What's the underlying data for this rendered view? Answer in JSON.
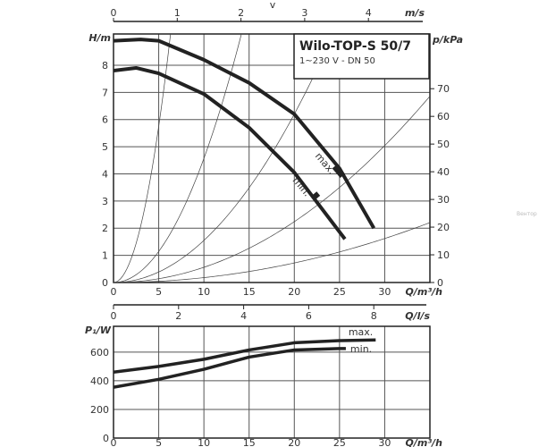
{
  "chart_data": [
    {
      "type": "line",
      "title": "Wilo-TOP-S 50/7",
      "subtitle": "1~230 V - DN 50",
      "xlabel": "Q/m³/h",
      "ylabel": "H/m",
      "y2label": "p/kPa",
      "top_axis_label": "v",
      "top_axis_unit": "m/s",
      "xlim": [
        0,
        35
      ],
      "ylim": [
        0,
        9.15
      ],
      "x_ticks": [
        0,
        5,
        10,
        15,
        20,
        25,
        30
      ],
      "y_ticks": [
        0,
        1,
        2,
        3,
        4,
        5,
        6,
        7,
        8
      ],
      "y2_ticks": [
        0,
        10,
        20,
        30,
        40,
        50,
        60,
        70
      ],
      "top_ticks": [
        0,
        1,
        2,
        3,
        4
      ],
      "series": [
        {
          "name": "max.",
          "x": [
            0,
            3,
            5,
            10,
            15,
            20,
            25,
            28.8
          ],
          "y": [
            8.9,
            8.95,
            8.9,
            8.2,
            7.35,
            6.2,
            4.2,
            2.0
          ]
        },
        {
          "name": "min.",
          "x": [
            0,
            2.5,
            5,
            10,
            15,
            20,
            25.6
          ],
          "y": [
            7.8,
            7.9,
            7.7,
            6.94,
            5.7,
            4.05,
            1.6
          ]
        }
      ],
      "markers": [
        {
          "name": "max.",
          "x": 24.9,
          "y": 4.1
        },
        {
          "name": "min.",
          "x": 22.4,
          "y": 3.2
        }
      ],
      "system_curves_k": [
        0.23,
        0.0457,
        0.0155,
        0.0056,
        0.0018
      ],
      "grid": true
    },
    {
      "type": "line",
      "xlabel": "Q/m³/h",
      "ylabel": "P₁/W",
      "mid_axis_label": "Q/l/s",
      "mid_ticks": [
        0,
        2,
        4,
        6,
        8
      ],
      "xlim": [
        0,
        35
      ],
      "ylim": [
        0,
        780
      ],
      "x_ticks": [
        0,
        5,
        10,
        15,
        20,
        25,
        30
      ],
      "y_ticks": [
        0,
        200,
        400,
        600
      ],
      "series": [
        {
          "name": "max.",
          "x": [
            0,
            5,
            10,
            15,
            20,
            25,
            29
          ],
          "y": [
            460,
            500,
            550,
            615,
            665,
            680,
            685
          ]
        },
        {
          "name": "min.",
          "x": [
            0,
            5,
            10,
            15,
            20,
            25,
            25.7
          ],
          "y": [
            355,
            410,
            480,
            565,
            615,
            625,
            625
          ]
        }
      ],
      "grid": true
    }
  ],
  "watermark": "Вентор"
}
